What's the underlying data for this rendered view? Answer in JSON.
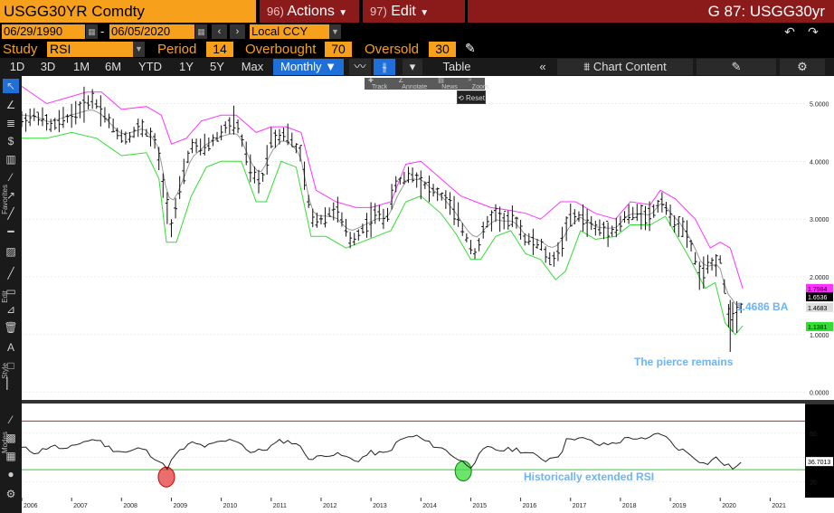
{
  "header": {
    "ticker": "USGG30YR Comdty",
    "actions_num": "96)",
    "actions_label": "Actions",
    "edit_num": "97)",
    "edit_label": "Edit",
    "graph_code": "G 87: USGG30yr"
  },
  "dates": {
    "start": "06/29/1990",
    "separator": "-",
    "end": "06/05/2020",
    "currency": "Local CCY"
  },
  "study": {
    "study_label": "Study",
    "study_value": "RSI",
    "period_label": "Period",
    "period_value": "14",
    "overbought_label": "Overbought",
    "overbought_value": "70",
    "oversold_label": "Oversold",
    "oversold_value": "30"
  },
  "tabs": {
    "items": [
      "1D",
      "3D",
      "1M",
      "6M",
      "YTD",
      "1Y",
      "5Y",
      "Max"
    ],
    "frequency": "Monthly",
    "table": "Table",
    "chart_content": "Chart Content"
  },
  "mini_toolbar": {
    "track": "Track",
    "annotate": "Annotate",
    "news": "News",
    "zoom": "Zoom",
    "reset": "Reset"
  },
  "sidebar_labels": {
    "favorites": "Favorites",
    "edit": "Edit",
    "style": "Style",
    "modes": "Modes"
  },
  "colors": {
    "orange": "#f7a01b",
    "menu_red": "#8b1a1a",
    "upper_band": "#ff33ff",
    "lower_band": "#33dd33",
    "middle_line": "#999999",
    "annotation_blue": "#6fb3f2",
    "overbought_line": "#cc2222",
    "oversold_line": "#33cc33"
  },
  "chart_data": [
    {
      "type": "ohlc",
      "annotations": {
        "price_label": "1.4686 BA",
        "text": "The pierce remains"
      },
      "y_ticks": [
        "5.0000",
        "4.0000",
        "3.0000",
        "2.0000",
        "1.0000",
        "0.0000"
      ],
      "y_tick_values": [
        5,
        4,
        3,
        2,
        1,
        0
      ],
      "ylim": [
        -0.1,
        5.4
      ],
      "value_badges": [
        {
          "text": "1.7984",
          "value": 1.7984,
          "bg": "#ff33ff",
          "fg": "#000"
        },
        {
          "text": "1.6536",
          "value": 1.6536,
          "bg": "#000",
          "fg": "#fff"
        },
        {
          "text": "1.4683",
          "value": 1.4683,
          "bg": "#ddd",
          "fg": "#000"
        },
        {
          "text": "1.1381",
          "value": 1.1381,
          "bg": "#33dd33",
          "fg": "#000"
        }
      ],
      "x_ticks": [
        "2006",
        "2007",
        "2008",
        "2009",
        "2010",
        "2011",
        "2012",
        "2013",
        "2014",
        "2015",
        "2016",
        "2017",
        "2018",
        "2019",
        "2020",
        "2021"
      ],
      "x_tick_values": [
        2006,
        2007,
        2008,
        2009,
        2010,
        2011,
        2012,
        2013,
        2014,
        2015,
        2016,
        2017,
        2018,
        2019,
        2020,
        2021
      ],
      "xlim": [
        2006,
        2021.7
      ],
      "price_anchors": [
        [
          2006.0,
          4.7
        ],
        [
          2006.3,
          4.8
        ],
        [
          2006.6,
          4.6
        ],
        [
          2006.9,
          4.75
        ],
        [
          2007.1,
          4.85
        ],
        [
          2007.4,
          5.1
        ],
        [
          2007.6,
          4.9
        ],
        [
          2007.9,
          4.5
        ],
        [
          2008.1,
          4.4
        ],
        [
          2008.4,
          4.6
        ],
        [
          2008.7,
          4.3
        ],
        [
          2008.85,
          3.5
        ],
        [
          2009.0,
          2.9
        ],
        [
          2009.2,
          3.6
        ],
        [
          2009.4,
          4.3
        ],
        [
          2009.6,
          4.2
        ],
        [
          2009.9,
          4.4
        ],
        [
          2010.1,
          4.6
        ],
        [
          2010.3,
          4.7
        ],
        [
          2010.6,
          3.8
        ],
        [
          2010.8,
          3.6
        ],
        [
          2011.0,
          4.4
        ],
        [
          2011.3,
          4.5
        ],
        [
          2011.6,
          4.1
        ],
        [
          2011.8,
          3.0
        ],
        [
          2012.0,
          3.0
        ],
        [
          2012.3,
          3.2
        ],
        [
          2012.6,
          2.6
        ],
        [
          2012.9,
          2.9
        ],
        [
          2013.1,
          3.1
        ],
        [
          2013.3,
          3.0
        ],
        [
          2013.5,
          3.6
        ],
        [
          2013.8,
          3.8
        ],
        [
          2014.0,
          3.65
        ],
        [
          2014.3,
          3.45
        ],
        [
          2014.5,
          3.35
        ],
        [
          2014.7,
          3.1
        ],
        [
          2014.9,
          2.7
        ],
        [
          2015.1,
          2.4
        ],
        [
          2015.3,
          2.9
        ],
        [
          2015.5,
          3.1
        ],
        [
          2015.7,
          2.95
        ],
        [
          2015.9,
          3.0
        ],
        [
          2016.1,
          2.65
        ],
        [
          2016.4,
          2.55
        ],
        [
          2016.6,
          2.25
        ],
        [
          2016.8,
          2.5
        ],
        [
          2016.95,
          3.0
        ],
        [
          2017.2,
          3.05
        ],
        [
          2017.5,
          2.85
        ],
        [
          2017.7,
          2.8
        ],
        [
          2017.95,
          2.85
        ],
        [
          2018.1,
          3.05
        ],
        [
          2018.4,
          3.1
        ],
        [
          2018.6,
          3.05
        ],
        [
          2018.85,
          3.35
        ],
        [
          2019.0,
          3.0
        ],
        [
          2019.2,
          2.9
        ],
        [
          2019.4,
          2.6
        ],
        [
          2019.6,
          2.0
        ],
        [
          2019.8,
          2.2
        ],
        [
          2020.0,
          2.3
        ],
        [
          2020.15,
          1.4
        ],
        [
          2020.3,
          1.3
        ],
        [
          2020.45,
          1.55
        ]
      ],
      "upper_band": [
        [
          2006.0,
          5.3
        ],
        [
          2006.5,
          5.0
        ],
        [
          2007.3,
          5.2
        ],
        [
          2007.6,
          5.2
        ],
        [
          2008.0,
          4.9
        ],
        [
          2008.5,
          4.95
        ],
        [
          2008.8,
          4.8
        ],
        [
          2009.0,
          4.3
        ],
        [
          2009.3,
          4.4
        ],
        [
          2009.6,
          4.7
        ],
        [
          2010.0,
          4.8
        ],
        [
          2010.3,
          4.8
        ],
        [
          2010.7,
          4.5
        ],
        [
          2011.0,
          4.6
        ],
        [
          2011.3,
          4.6
        ],
        [
          2011.6,
          4.5
        ],
        [
          2011.9,
          3.5
        ],
        [
          2012.3,
          3.3
        ],
        [
          2012.7,
          3.2
        ],
        [
          2013.0,
          3.2
        ],
        [
          2013.4,
          3.3
        ],
        [
          2013.7,
          3.95
        ],
        [
          2014.0,
          4.0
        ],
        [
          2014.4,
          3.7
        ],
        [
          2014.8,
          3.4
        ],
        [
          2015.1,
          3.3
        ],
        [
          2015.4,
          3.2
        ],
        [
          2015.8,
          3.15
        ],
        [
          2016.1,
          3.1
        ],
        [
          2016.4,
          3.0
        ],
        [
          2016.8,
          3.3
        ],
        [
          2017.1,
          3.3
        ],
        [
          2017.5,
          3.1
        ],
        [
          2017.9,
          3.0
        ],
        [
          2018.2,
          3.3
        ],
        [
          2018.6,
          3.25
        ],
        [
          2018.8,
          3.5
        ],
        [
          2019.1,
          3.35
        ],
        [
          2019.5,
          3.0
        ],
        [
          2019.8,
          2.5
        ],
        [
          2020.0,
          2.6
        ],
        [
          2020.2,
          2.5
        ],
        [
          2020.45,
          1.8
        ]
      ],
      "lower_band": [
        [
          2006.0,
          4.4
        ],
        [
          2006.5,
          4.4
        ],
        [
          2007.0,
          4.5
        ],
        [
          2007.5,
          4.4
        ],
        [
          2008.0,
          4.1
        ],
        [
          2008.5,
          4.15
        ],
        [
          2008.75,
          3.7
        ],
        [
          2008.9,
          2.6
        ],
        [
          2009.1,
          2.6
        ],
        [
          2009.4,
          3.4
        ],
        [
          2009.7,
          3.9
        ],
        [
          2010.0,
          4.0
        ],
        [
          2010.4,
          4.0
        ],
        [
          2010.7,
          3.3
        ],
        [
          2010.9,
          3.3
        ],
        [
          2011.2,
          4.0
        ],
        [
          2011.5,
          3.9
        ],
        [
          2011.8,
          2.7
        ],
        [
          2012.1,
          2.7
        ],
        [
          2012.5,
          2.5
        ],
        [
          2012.8,
          2.6
        ],
        [
          2013.1,
          2.7
        ],
        [
          2013.4,
          2.8
        ],
        [
          2013.7,
          3.3
        ],
        [
          2014.0,
          3.4
        ],
        [
          2014.4,
          3.1
        ],
        [
          2014.7,
          2.75
        ],
        [
          2015.0,
          2.3
        ],
        [
          2015.2,
          2.3
        ],
        [
          2015.5,
          2.7
        ],
        [
          2015.8,
          2.8
        ],
        [
          2016.1,
          2.4
        ],
        [
          2016.4,
          2.3
        ],
        [
          2016.7,
          1.95
        ],
        [
          2016.9,
          2.1
        ],
        [
          2017.2,
          2.8
        ],
        [
          2017.5,
          2.65
        ],
        [
          2017.9,
          2.7
        ],
        [
          2018.2,
          2.9
        ],
        [
          2018.6,
          2.9
        ],
        [
          2018.9,
          3.05
        ],
        [
          2019.1,
          2.75
        ],
        [
          2019.4,
          2.3
        ],
        [
          2019.7,
          1.8
        ],
        [
          2019.9,
          1.9
        ],
        [
          2020.1,
          1.2
        ],
        [
          2020.3,
          1.0
        ],
        [
          2020.45,
          1.15
        ]
      ]
    },
    {
      "type": "line",
      "name": "RSI",
      "annotation": "Historically extended RSI",
      "y_ticks": [
        "60",
        "40",
        "20"
      ],
      "y_tick_values": [
        60,
        40,
        20
      ],
      "ylim": [
        10,
        80
      ],
      "overbought": 70,
      "oversold": 30,
      "last_value_badge": "36.7013",
      "last_value": 36.7013,
      "highlight_markers": [
        {
          "x": 2008.9,
          "y": 24,
          "color": "red"
        },
        {
          "x": 2014.85,
          "y": 29,
          "color": "green"
        }
      ],
      "values": [
        [
          2006.0,
          48
        ],
        [
          2006.3,
          44
        ],
        [
          2006.6,
          50
        ],
        [
          2006.9,
          46
        ],
        [
          2007.2,
          53
        ],
        [
          2007.5,
          55
        ],
        [
          2007.8,
          47
        ],
        [
          2008.1,
          44
        ],
        [
          2008.4,
          48
        ],
        [
          2008.7,
          39
        ],
        [
          2008.9,
          31
        ],
        [
          2009.1,
          43
        ],
        [
          2009.4,
          52
        ],
        [
          2009.7,
          49
        ],
        [
          2010.0,
          53
        ],
        [
          2010.3,
          55
        ],
        [
          2010.6,
          44
        ],
        [
          2010.9,
          47
        ],
        [
          2011.2,
          54
        ],
        [
          2011.5,
          52
        ],
        [
          2011.8,
          38
        ],
        [
          2012.1,
          43
        ],
        [
          2012.4,
          42
        ],
        [
          2012.7,
          37
        ],
        [
          2013.0,
          44
        ],
        [
          2013.3,
          43
        ],
        [
          2013.6,
          55
        ],
        [
          2013.9,
          58
        ],
        [
          2014.2,
          51
        ],
        [
          2014.5,
          46
        ],
        [
          2014.8,
          37
        ],
        [
          2015.0,
          33
        ],
        [
          2015.3,
          48
        ],
        [
          2015.6,
          46
        ],
        [
          2015.9,
          47
        ],
        [
          2016.2,
          43
        ],
        [
          2016.5,
          38
        ],
        [
          2016.8,
          43
        ],
        [
          2016.95,
          57
        ],
        [
          2017.3,
          55
        ],
        [
          2017.6,
          50
        ],
        [
          2017.9,
          52
        ],
        [
          2018.2,
          57
        ],
        [
          2018.5,
          54
        ],
        [
          2018.8,
          61
        ],
        [
          2019.1,
          49
        ],
        [
          2019.4,
          43
        ],
        [
          2019.7,
          34
        ],
        [
          2019.9,
          40
        ],
        [
          2020.1,
          34
        ],
        [
          2020.3,
          31
        ],
        [
          2020.45,
          37
        ]
      ]
    }
  ]
}
